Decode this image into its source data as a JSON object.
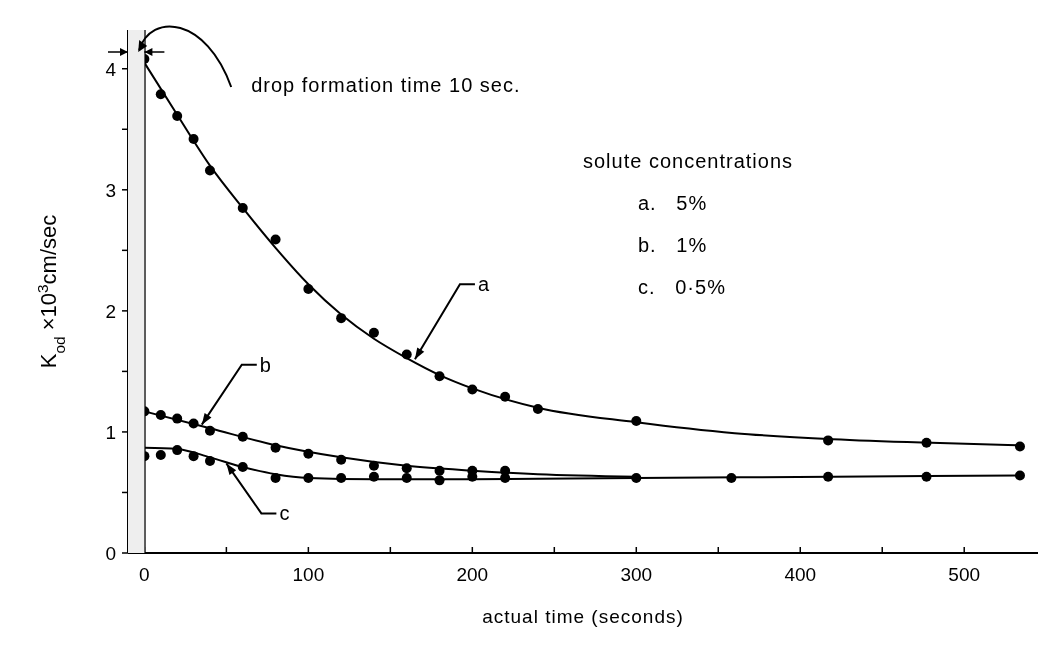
{
  "chart_data": {
    "type": "scatter",
    "xlabel": "actual time (seconds)",
    "ylabel": "K$_{od}$ ×10$^{3}$cm/sec",
    "xlim": [
      -10,
      545
    ],
    "ylim": [
      0,
      4.32
    ],
    "xticks": [
      0,
      {
        "value": 50,
        "label": null
      },
      100,
      {
        "value": 150,
        "label": null
      },
      200,
      {
        "value": 250,
        "label": null
      },
      300,
      {
        "value": 350,
        "label": null
      },
      400,
      {
        "value": 450,
        "label": null
      },
      500
    ],
    "yticks": [
      0,
      {
        "value": 0.5,
        "label": null
      },
      1,
      {
        "value": 1.5,
        "label": null
      },
      2,
      {
        "value": 2.5,
        "label": null
      },
      3,
      {
        "value": 3.5,
        "label": null
      },
      4
    ],
    "marker": "circle",
    "grid": false,
    "series": [
      {
        "color": "#000000",
        "x": [
          0,
          10,
          20,
          30,
          40,
          60,
          80,
          100,
          120,
          140,
          160,
          180,
          200,
          220,
          240,
          300,
          417,
          477,
          534
        ],
        "values": [
          4.08,
          3.79,
          3.61,
          3.42,
          3.16,
          2.85,
          2.59,
          2.18,
          1.94,
          1.82,
          1.64,
          1.46,
          1.35,
          1.29,
          1.19,
          1.09,
          0.93,
          0.91,
          0.88
        ]
      },
      {
        "color": "#000000",
        "x": [
          0,
          10,
          20,
          30,
          40,
          60,
          80,
          100,
          120,
          140,
          160,
          180,
          200,
          220
        ],
        "values": [
          1.17,
          1.14,
          1.11,
          1.07,
          1.01,
          0.96,
          0.87,
          0.82,
          0.77,
          0.72,
          0.7,
          0.68,
          0.68,
          0.68
        ]
      },
      {
        "color": "#000000",
        "x": [
          0,
          10,
          20,
          30,
          40,
          60,
          80,
          100,
          120,
          140,
          160,
          180,
          200,
          220,
          300,
          358,
          417,
          477,
          534
        ],
        "values": [
          0.8,
          0.81,
          0.85,
          0.8,
          0.76,
          0.71,
          0.62,
          0.62,
          0.62,
          0.63,
          0.62,
          0.6,
          0.63,
          0.62,
          0.62,
          0.62,
          0.63,
          0.63,
          0.64
        ]
      },
      {
        "type": "line",
        "marker": "none",
        "color": "#000000",
        "x": [
          0,
          20,
          40,
          60,
          80,
          100,
          120,
          140,
          160,
          180,
          200,
          240,
          300,
          360,
          420,
          480,
          534
        ],
        "values": [
          4.05,
          3.62,
          3.2,
          2.85,
          2.52,
          2.22,
          1.97,
          1.77,
          1.61,
          1.47,
          1.36,
          1.2,
          1.08,
          0.99,
          0.94,
          0.91,
          0.89
        ]
      },
      {
        "type": "line",
        "marker": "none",
        "color": "#000000",
        "x": [
          0,
          40,
          80,
          120,
          160,
          200,
          240,
          300
        ],
        "values": [
          1.17,
          1.03,
          0.89,
          0.79,
          0.72,
          0.68,
          0.65,
          0.63
        ]
      },
      {
        "type": "line",
        "marker": "none",
        "color": "#000000",
        "x": [
          0,
          20,
          40,
          60,
          80,
          100,
          140,
          200,
          300,
          420,
          534
        ],
        "values": [
          0.87,
          0.86,
          0.79,
          0.71,
          0.65,
          0.62,
          0.61,
          0.61,
          0.62,
          0.63,
          0.64
        ]
      }
    ],
    "bands": [
      {
        "axis": "x",
        "from": -10,
        "to": 0,
        "label": "drop formation time 10 sec.",
        "color": "#eeeeee"
      }
    ],
    "ref_lines": [
      {
        "axis": "x",
        "value": 0,
        "color": "#000000"
      }
    ],
    "annotations": [
      {
        "text": "a",
        "x": 165,
        "y": 1.6
      },
      {
        "text": "b",
        "x": 35,
        "y": 1.06
      },
      {
        "text": "c",
        "x": 50,
        "y": 0.74
      },
      "solute concentrations",
      "a.   5%",
      "b.   1%",
      "c.   0·5%"
    ]
  }
}
